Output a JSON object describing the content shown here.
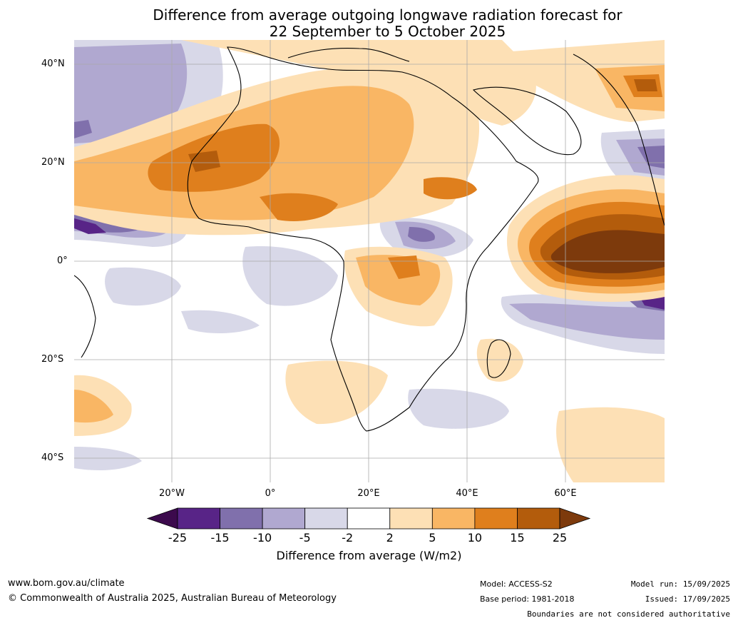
{
  "title_line1": "Difference from average outgoing longwave radiation forecast for",
  "title_line2": "22 September to 5 October 2025",
  "lat_labels": [
    "40°N",
    "20°N",
    "0°",
    "20°S",
    "40°S"
  ],
  "lon_labels": [
    "20°W",
    "0°",
    "20°E",
    "40°E",
    "60°E"
  ],
  "colorbar": {
    "ticks": [
      "-25",
      "-15",
      "-10",
      "-5",
      "-2",
      "2",
      "5",
      "10",
      "15",
      "25"
    ],
    "colors": [
      "#3c0a4d",
      "#582487",
      "#8070ac",
      "#b0a8d0",
      "#d8d8e8",
      "#ffffff",
      "#fde0b5",
      "#f9b664",
      "#df7f1d",
      "#b35c0c",
      "#7d3a0c"
    ],
    "label": "Difference from average (W/m2)"
  },
  "footer": {
    "website": "www.bom.gov.au/climate",
    "copyright": "© Commonwealth of Australia 2025, Australian Bureau of Meteorology",
    "model": "Model: ACCESS-S2",
    "base_period": "Base period: 1981-2018",
    "model_run": "Model run: 15/09/2025",
    "issued": "Issued: 17/09/2025",
    "disclaimer": "Boundaries are not considered authoritative"
  }
}
